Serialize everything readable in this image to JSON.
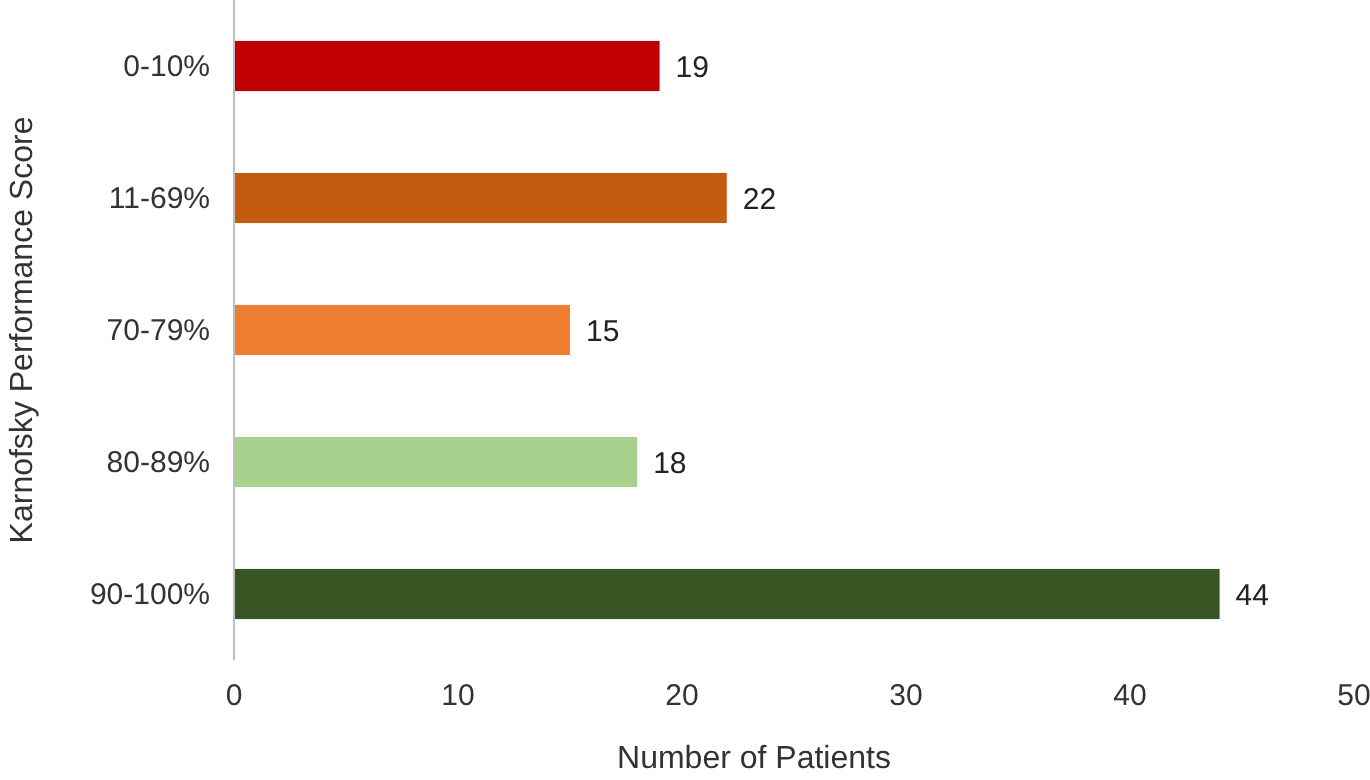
{
  "chart_data": {
    "type": "bar",
    "orientation": "horizontal",
    "categories": [
      "0-10%",
      "11-69%",
      "70-79%",
      "80-89%",
      "90-100%"
    ],
    "values": [
      19,
      22,
      15,
      18,
      44
    ],
    "colors": [
      "#c00000",
      "#c55a11",
      "#ed7d31",
      "#a9d18e",
      "#375623"
    ],
    "xlim": [
      0,
      50
    ],
    "xticks": [
      0,
      10,
      20,
      30,
      40,
      50
    ],
    "xlabel": "Number of Patients",
    "ylabel": "Karnofsky Performance Score",
    "data_labels": true,
    "grid": false
  }
}
